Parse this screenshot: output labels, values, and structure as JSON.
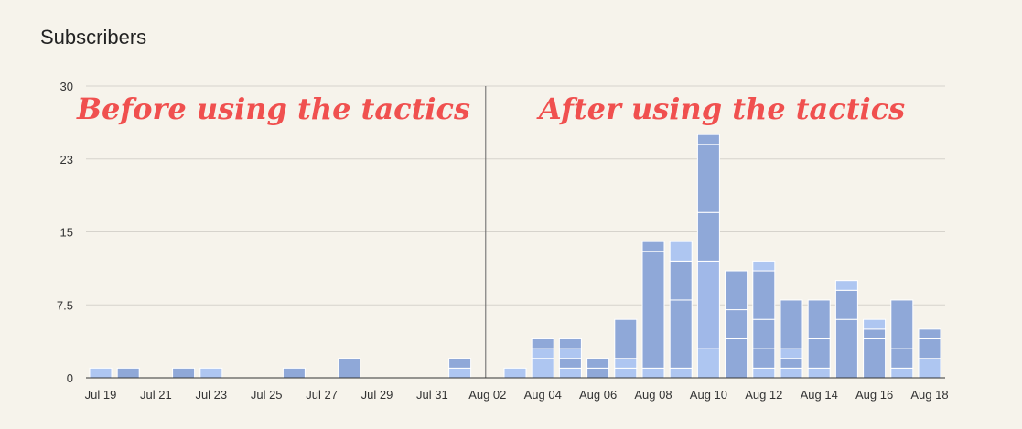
{
  "chart_data": {
    "type": "bar",
    "stacked": true,
    "title": "Subscribers",
    "ylim": [
      0,
      30
    ],
    "yticks": [
      "0",
      "7.5",
      "15",
      "23",
      "30"
    ],
    "ytick_values": [
      0,
      7.5,
      15,
      22.5,
      30
    ],
    "xtick_labels": [
      "Jul 19",
      "Jul 21",
      "Jul 23",
      "Jul 25",
      "Jul 27",
      "Jul 29",
      "Jul 31",
      "Aug 02",
      "Aug 04",
      "Aug 06",
      "Aug 08",
      "Aug 10",
      "Aug 12",
      "Aug 14",
      "Aug 16",
      "Aug 18"
    ],
    "days": [
      {
        "date": "Jul 19",
        "segments": [
          1
        ],
        "colors": [
          "#aec6f1"
        ]
      },
      {
        "date": "Jul 20",
        "segments": [
          1
        ],
        "colors": [
          "#8fa8d8"
        ]
      },
      {
        "date": "Jul 21",
        "segments": [],
        "colors": []
      },
      {
        "date": "Jul 22",
        "segments": [
          1
        ],
        "colors": [
          "#8fa8d8"
        ]
      },
      {
        "date": "Jul 23",
        "segments": [
          1
        ],
        "colors": [
          "#aec6f1"
        ]
      },
      {
        "date": "Jul 24",
        "segments": [],
        "colors": []
      },
      {
        "date": "Jul 25",
        "segments": [],
        "colors": []
      },
      {
        "date": "Jul 26",
        "segments": [
          1
        ],
        "colors": [
          "#8fa8d8"
        ]
      },
      {
        "date": "Jul 27",
        "segments": [],
        "colors": []
      },
      {
        "date": "Jul 28",
        "segments": [
          2
        ],
        "colors": [
          "#8fa8d8"
        ]
      },
      {
        "date": "Jul 29",
        "segments": [],
        "colors": []
      },
      {
        "date": "Jul 30",
        "segments": [],
        "colors": []
      },
      {
        "date": "Jul 31",
        "segments": [],
        "colors": []
      },
      {
        "date": "Aug 01",
        "segments": [
          1,
          1
        ],
        "colors": [
          "#aec6f1",
          "#8fa8d8"
        ]
      },
      {
        "date": "Aug 02",
        "segments": [],
        "colors": []
      },
      {
        "date": "Aug 03",
        "segments": [
          1
        ],
        "colors": [
          "#aec6f1"
        ]
      },
      {
        "date": "Aug 04",
        "segments": [
          2,
          1,
          1
        ],
        "colors": [
          "#aec6f1",
          "#aec6f1",
          "#8fa8d8"
        ]
      },
      {
        "date": "Aug 05",
        "segments": [
          1,
          1,
          1,
          1
        ],
        "colors": [
          "#aec6f1",
          "#8fa8d8",
          "#aec6f1",
          "#8fa8d8"
        ]
      },
      {
        "date": "Aug 06",
        "segments": [
          1,
          1
        ],
        "colors": [
          "#8fa8d8",
          "#8fa8d8"
        ]
      },
      {
        "date": "Aug 07",
        "segments": [
          1,
          1,
          4
        ],
        "colors": [
          "#aec6f1",
          "#aec6f1",
          "#8fa8d8"
        ]
      },
      {
        "date": "Aug 08",
        "segments": [
          1,
          12,
          1
        ],
        "colors": [
          "#aec6f1",
          "#8fa8d8",
          "#8fa8d8"
        ]
      },
      {
        "date": "Aug 09",
        "segments": [
          1,
          7,
          4,
          2
        ],
        "colors": [
          "#aec6f1",
          "#8fa8d8",
          "#8fa8d8",
          "#aec6f1"
        ]
      },
      {
        "date": "Aug 10",
        "segments": [
          3,
          9,
          5,
          7,
          1
        ],
        "colors": [
          "#aec6f1",
          "#a0b8e8",
          "#8fa8d8",
          "#8fa8d8",
          "#8fa8d8"
        ]
      },
      {
        "date": "Aug 11",
        "segments": [
          4,
          3,
          4
        ],
        "colors": [
          "#8fa8d8",
          "#8fa8d8",
          "#8fa8d8"
        ]
      },
      {
        "date": "Aug 12",
        "segments": [
          1,
          2,
          3,
          5,
          1
        ],
        "colors": [
          "#aec6f1",
          "#8fa8d8",
          "#8fa8d8",
          "#8fa8d8",
          "#aec6f1"
        ]
      },
      {
        "date": "Aug 13",
        "segments": [
          1,
          1,
          1,
          5
        ],
        "colors": [
          "#aec6f1",
          "#8fa8d8",
          "#aec6f1",
          "#8fa8d8"
        ]
      },
      {
        "date": "Aug 14",
        "segments": [
          1,
          3,
          4
        ],
        "colors": [
          "#aec6f1",
          "#8fa8d8",
          "#8fa8d8"
        ]
      },
      {
        "date": "Aug 15",
        "segments": [
          6,
          3,
          1
        ],
        "colors": [
          "#8fa8d8",
          "#8fa8d8",
          "#aec6f1"
        ]
      },
      {
        "date": "Aug 16",
        "segments": [
          4,
          1,
          1
        ],
        "colors": [
          "#8fa8d8",
          "#8fa8d8",
          "#aec6f1"
        ]
      },
      {
        "date": "Aug 17",
        "segments": [
          1,
          2,
          5
        ],
        "colors": [
          "#aec6f1",
          "#8fa8d8",
          "#8fa8d8"
        ]
      },
      {
        "date": "Aug 18",
        "segments": [
          2,
          2,
          1
        ],
        "colors": [
          "#aec6f1",
          "#8fa8d8",
          "#8fa8d8"
        ]
      }
    ],
    "divider_before": "Aug 02",
    "annotations": {
      "before": "Before using the tactics",
      "after": "After using the tactics"
    }
  }
}
